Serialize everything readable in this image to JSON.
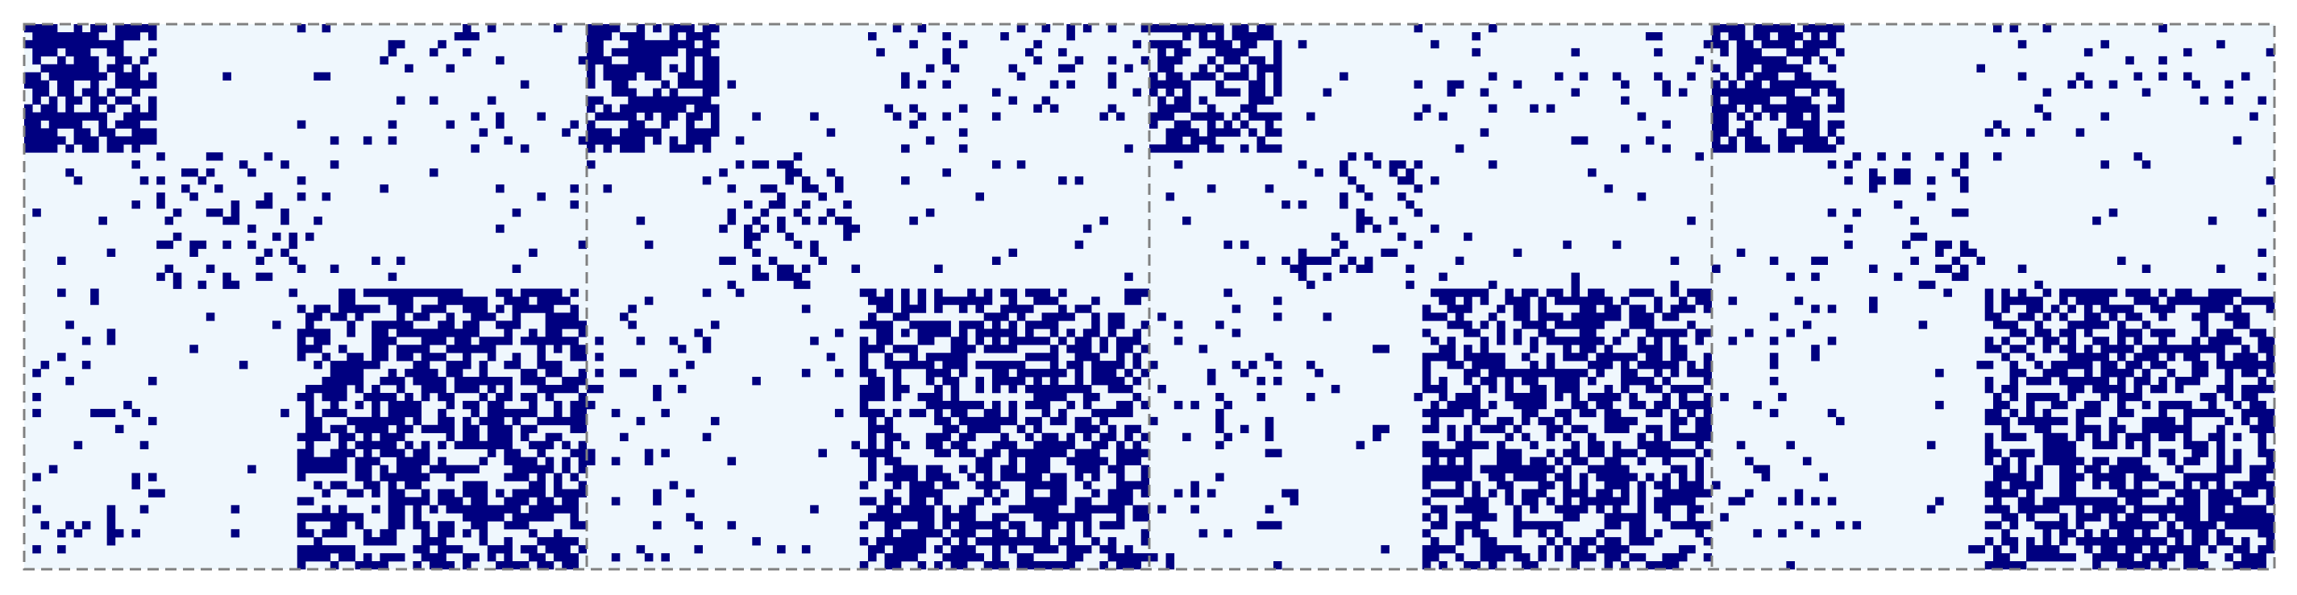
{
  "chart_data": {
    "type": "heatmap",
    "panel_count": 4,
    "matrix_size": 68,
    "colors": {
      "background": "#eff7fd",
      "filled": "#000080",
      "separator": "#808080"
    },
    "block_boundaries": [
      16,
      33
    ],
    "block_densities": [
      [
        0.65,
        0.02,
        0.08
      ],
      [
        0.02,
        0.22,
        0.03
      ],
      [
        0.08,
        0.03,
        0.55
      ]
    ],
    "panel_seeds": [
      11,
      23,
      37,
      53
    ],
    "title": "",
    "xlabel": "",
    "ylabel": ""
  }
}
